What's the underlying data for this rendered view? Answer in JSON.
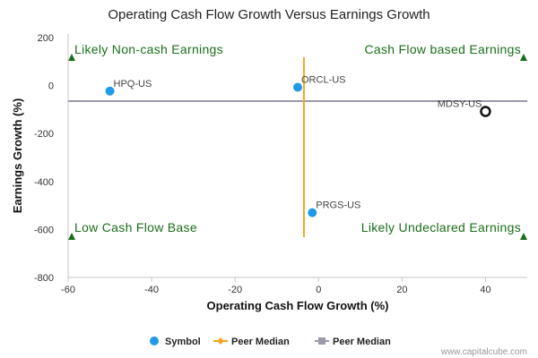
{
  "chart_data": {
    "type": "scatter",
    "title": "Operating Cash Flow Growth Versus Earnings Growth",
    "xlabel": "Operating Cash Flow Growth (%)",
    "ylabel": "Earnings Growth (%)",
    "xlim": [
      -60,
      50
    ],
    "ylim": [
      -800,
      200
    ],
    "xticks": [
      -60,
      -40,
      -20,
      0,
      20,
      40
    ],
    "yticks": [
      200,
      0,
      -200,
      -400,
      -600,
      -800
    ],
    "grid": false,
    "points": [
      {
        "label": "HPQ-US",
        "x": -50,
        "y": -23,
        "style": "filled",
        "color": "#1e9be6"
      },
      {
        "label": "ORCL-US",
        "x": -5,
        "y": -7,
        "style": "filled",
        "color": "#1e9be6"
      },
      {
        "label": "PRGS-US",
        "x": -1.5,
        "y": -530,
        "style": "filled",
        "color": "#1e9be6"
      },
      {
        "label": "MDSY-US",
        "x": 40,
        "y": -108,
        "style": "hollow",
        "color": "#111111"
      }
    ],
    "peer_median_x": -3.5,
    "peer_median_y": -65,
    "peer_median_colors": {
      "vertical": "#f5a623",
      "horizontal": "#9a9aa8"
    },
    "quadrants": [
      {
        "text": "Likely Non-cash Earnings",
        "corner": "top-left"
      },
      {
        "text": "Cash Flow based Earnings",
        "corner": "top-right"
      },
      {
        "text": "Low Cash Flow Base",
        "corner": "bottom-left"
      },
      {
        "text": "Likely Undeclared Earnings",
        "corner": "bottom-right"
      }
    ],
    "quadrant_marker_color": "#1a6e1a",
    "legend": {
      "placement": "bottom-center",
      "items": [
        {
          "label": "Symbol",
          "kind": "dot",
          "color": "#1e9be6"
        },
        {
          "label": "Peer Median",
          "kind": "line-diamond",
          "color": "#f5a623"
        },
        {
          "label": "Peer Median",
          "kind": "line-square",
          "color": "#9a9aa8"
        }
      ]
    }
  },
  "footer": {
    "credit": "www.capitalcube.com"
  }
}
